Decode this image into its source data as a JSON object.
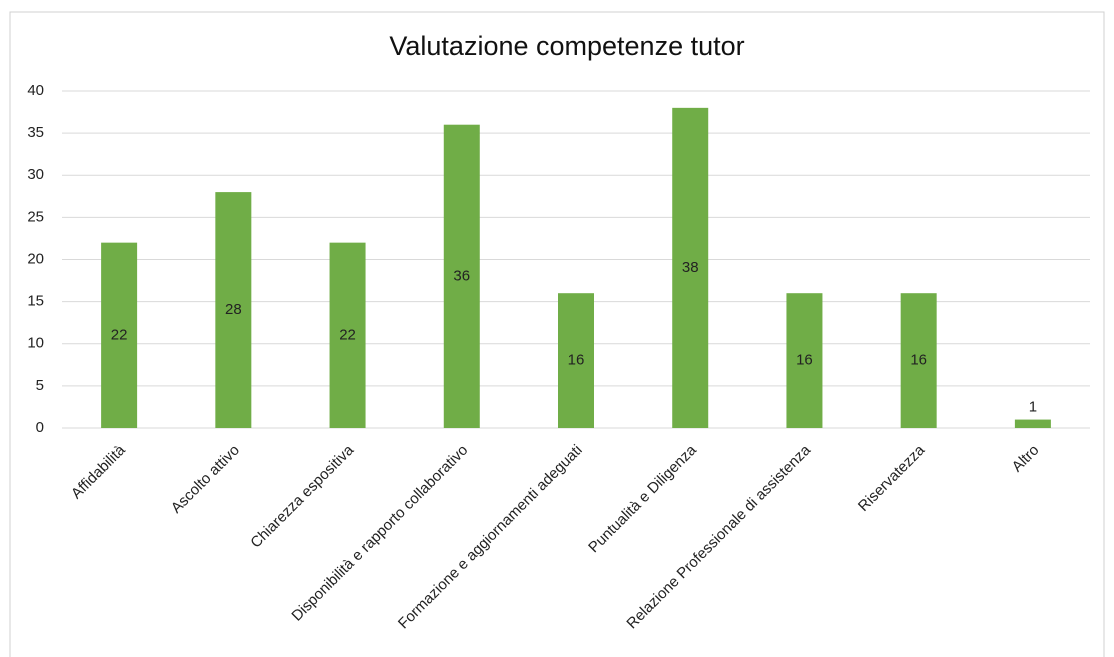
{
  "chart_data": {
    "type": "bar",
    "title": "Valutazione competenze tutor",
    "categories": [
      "Affidabilità",
      "Ascolto attivo",
      "Chiarezza espositiva",
      "Disponibilità e rapporto collaborativo",
      "Formazione e aggiornamenti adeguati",
      "Puntualità e Diligenza",
      "Relazione Professionale di assistenza",
      "Riservatezza",
      "Altro"
    ],
    "values": [
      22,
      28,
      22,
      36,
      16,
      38,
      16,
      16,
      1
    ],
    "color": "#70ad47",
    "ylim": [
      0,
      40
    ],
    "yticks": [
      0,
      5,
      10,
      15,
      20,
      25,
      30,
      35,
      40
    ],
    "grid": true
  }
}
